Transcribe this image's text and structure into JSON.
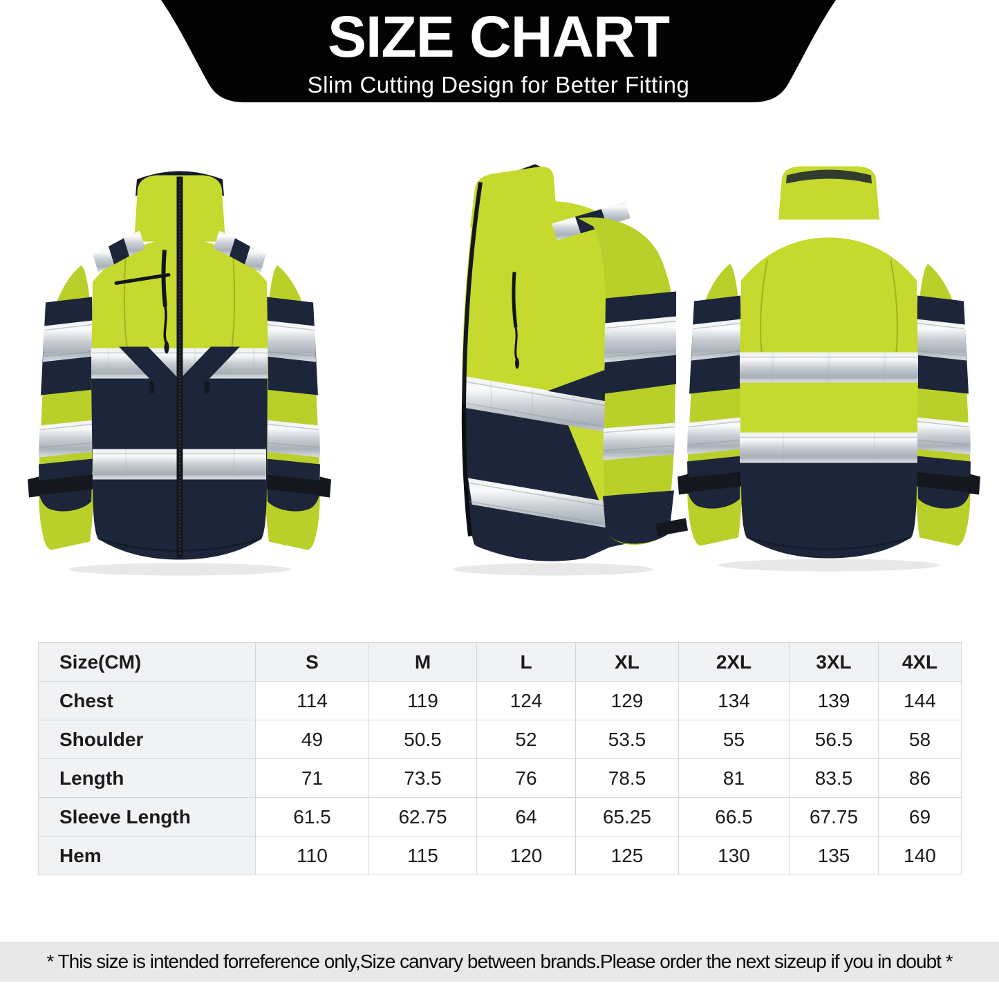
{
  "header": {
    "title": "SIZE CHART",
    "subtitle": "Slim Cutting Design for Better Fitting",
    "bg_color": "#000000",
    "text_color": "#ffffff"
  },
  "product": {
    "views": [
      {
        "id": "front",
        "label": "front view of hi-vis softshell jacket"
      },
      {
        "id": "side",
        "label": "side view of hi-vis softshell jacket"
      },
      {
        "id": "back",
        "label": "back view of hi-vis softshell jacket"
      }
    ],
    "colors": {
      "hivis_yellow": "#c5d92e",
      "hivis_shade": "#b9cf2a",
      "navy": "#1c2539",
      "reflective_silver": "#ccd1d6",
      "trim_black": "#14171d"
    }
  },
  "size_table": {
    "unit_header": "Size(CM)",
    "columns": [
      "S",
      "M",
      "L",
      "XL",
      "2XL",
      "3XL",
      "4XL"
    ],
    "rows": [
      {
        "label": "Chest",
        "values": [
          "114",
          "119",
          "124",
          "129",
          "134",
          "139",
          "144"
        ]
      },
      {
        "label": "Shoulder",
        "values": [
          "49",
          "50.5",
          "52",
          "53.5",
          "55",
          "56.5",
          "58"
        ]
      },
      {
        "label": "Length",
        "values": [
          "71",
          "73.5",
          "76",
          "78.5",
          "81",
          "83.5",
          "86"
        ]
      },
      {
        "label": "Sleeve Length",
        "values": [
          "61.5",
          "62.75",
          "64",
          "65.25",
          "66.5",
          "67.75",
          "69"
        ]
      },
      {
        "label": "Hem",
        "values": [
          "110",
          "115",
          "120",
          "125",
          "130",
          "135",
          "140"
        ]
      }
    ]
  },
  "footer": {
    "note": "* This size is intended forreference only,Size canvary between brands.Please order the next sizeup if you in doubt *",
    "bg_color": "#e8e8e8"
  }
}
